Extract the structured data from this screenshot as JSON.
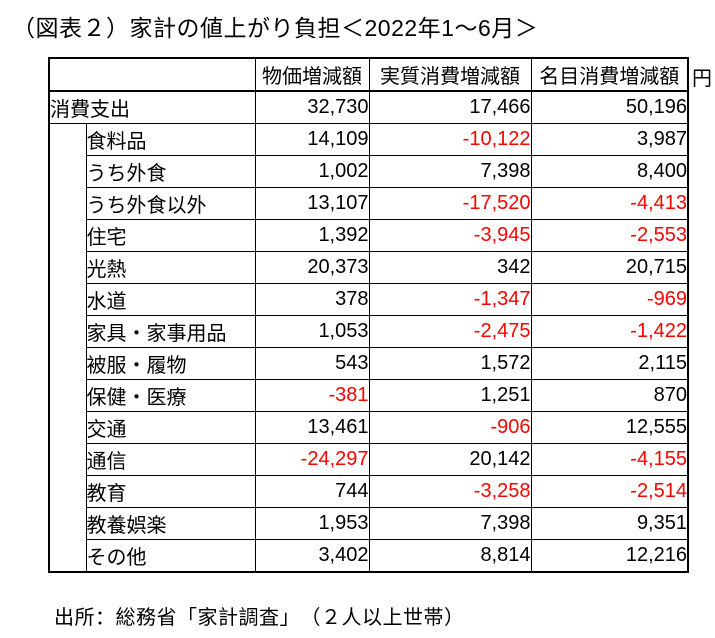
{
  "title": "（図表２）家計の値上がり負担＜2022年1～6月＞",
  "table": {
    "column_headers": [
      "物価増減額",
      "実質消費増減額",
      "名目消費増減額"
    ],
    "unit_label": "円"
  },
  "source_note": "出所：総務省「家計調査」　（２人以上世帯）",
  "colors": {
    "negative_value": "#ff0000",
    "text": "#000000",
    "border": "#000000",
    "background": "#ffffff"
  },
  "chart_data": {
    "type": "table",
    "title": "（図表２）家計の値上がり負担＜2022年1～6月＞",
    "columns": [
      "物価増減額",
      "実質消費増減額",
      "名目消費増減額"
    ],
    "unit": "円",
    "rows": [
      {
        "label": "消費支出",
        "level": 0,
        "values": [
          32730,
          17466,
          50196
        ]
      },
      {
        "label": "食料品",
        "level": 1,
        "values": [
          14109,
          -10122,
          3987
        ]
      },
      {
        "label": "うち外食",
        "level": 1,
        "values": [
          1002,
          7398,
          8400
        ]
      },
      {
        "label": "うち外食以外",
        "level": 1,
        "values": [
          13107,
          -17520,
          -4413
        ]
      },
      {
        "label": "住宅",
        "level": 1,
        "values": [
          1392,
          -3945,
          -2553
        ]
      },
      {
        "label": "光熱",
        "level": 1,
        "values": [
          20373,
          342,
          20715
        ]
      },
      {
        "label": "水道",
        "level": 1,
        "values": [
          378,
          -1347,
          -969
        ]
      },
      {
        "label": "家具・家事用品",
        "level": 1,
        "values": [
          1053,
          -2475,
          -1422
        ]
      },
      {
        "label": "被服・履物",
        "level": 1,
        "values": [
          543,
          1572,
          2115
        ]
      },
      {
        "label": "保健・医療",
        "level": 1,
        "values": [
          -381,
          1251,
          870
        ]
      },
      {
        "label": "交通",
        "level": 1,
        "values": [
          13461,
          -906,
          12555
        ]
      },
      {
        "label": "通信",
        "level": 1,
        "values": [
          -24297,
          20142,
          -4155
        ]
      },
      {
        "label": "教育",
        "level": 1,
        "values": [
          744,
          -3258,
          -2514
        ]
      },
      {
        "label": "教養娯楽",
        "level": 1,
        "values": [
          1953,
          7398,
          9351
        ]
      },
      {
        "label": "その他",
        "level": 1,
        "values": [
          3402,
          8814,
          12216
        ]
      }
    ]
  }
}
